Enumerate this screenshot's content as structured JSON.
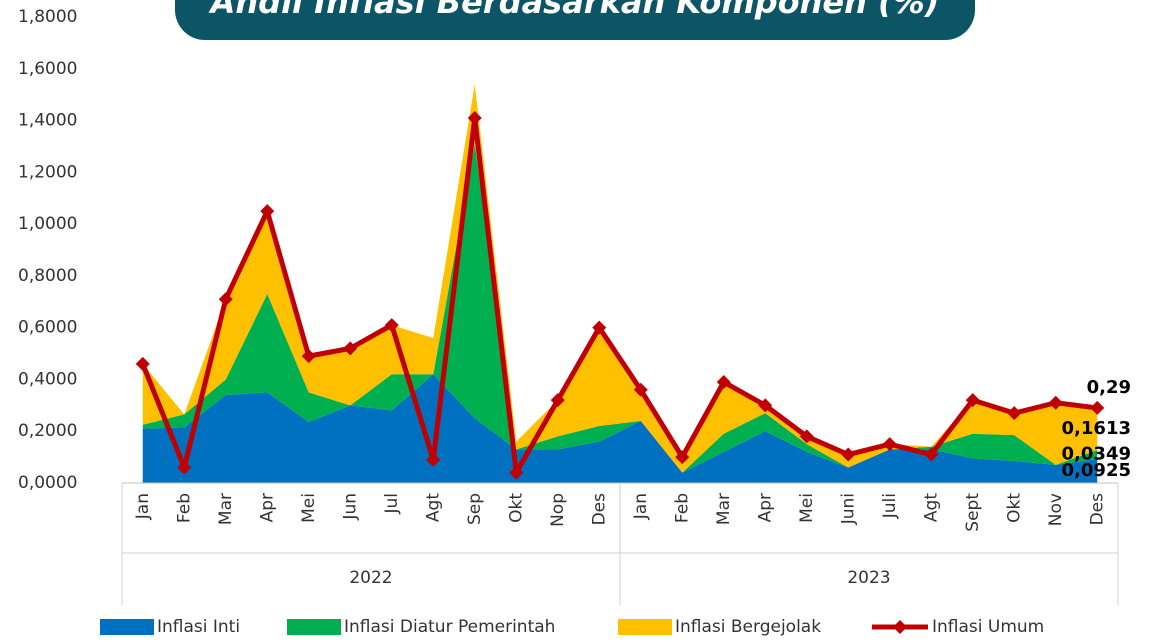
{
  "chart_data": {
    "type": "area",
    "title": "Andil Inflasi Berdasarkan Komponen (%)",
    "groups": [
      {
        "name": "2022",
        "categories": [
          "Jan",
          "Feb",
          "Mar",
          "Apr",
          "Mei",
          "Jun",
          "Jul",
          "Agt",
          "Sep",
          "Okt",
          "Nop",
          "Des"
        ]
      },
      {
        "name": "2023",
        "categories": [
          "Jan",
          "Feb",
          "Mar",
          "Apr",
          "Mei",
          "Juni",
          "Juli",
          "Agt",
          "Sept",
          "Okt",
          "Nov",
          "Des"
        ]
      }
    ],
    "ylim": [
      0,
      1.8
    ],
    "yticks": [
      {
        "value": 0,
        "label": "0,0000"
      },
      {
        "value": 0.2,
        "label": "0,2000"
      },
      {
        "value": 0.4,
        "label": "0,4000"
      },
      {
        "value": 0.6,
        "label": "0,6000"
      },
      {
        "value": 0.8,
        "label": "0,8000"
      },
      {
        "value": 1.0,
        "label": "1,0000"
      },
      {
        "value": 1.2,
        "label": "1,2000"
      },
      {
        "value": 1.4,
        "label": "1,4000"
      },
      {
        "value": 1.6,
        "label": "1,6000"
      },
      {
        "value": 1.8,
        "label": "1,8000"
      }
    ],
    "stacked": true,
    "series": [
      {
        "name": "Inflasi Inti",
        "color": "#0070c0",
        "values": [
          0.21,
          0.215,
          0.34,
          0.35,
          0.235,
          0.3,
          0.28,
          0.42,
          0.25,
          0.13,
          0.13,
          0.16,
          0.24,
          0.04,
          0.12,
          0.2,
          0.12,
          0.06,
          0.13,
          0.13,
          0.095,
          0.085,
          0.07,
          0.0925
        ],
        "value_labels": [
          null,
          null,
          null,
          null,
          null,
          null,
          null,
          null,
          null,
          null,
          null,
          null,
          null,
          null,
          null,
          null,
          null,
          null,
          null,
          null,
          null,
          null,
          null,
          "0,0925"
        ]
      },
      {
        "name": "Inflasi Diatur Pemerintah",
        "color": "#00b050",
        "values": [
          0.015,
          0.05,
          0.06,
          0.38,
          0.115,
          0.0,
          0.14,
          0.0,
          1.06,
          0.0,
          0.05,
          0.06,
          0.0,
          0.0,
          0.07,
          0.07,
          0.03,
          0.0,
          0.0,
          0.01,
          0.095,
          0.1,
          0.0,
          0.0349
        ],
        "value_labels": [
          null,
          null,
          null,
          null,
          null,
          null,
          null,
          null,
          null,
          null,
          null,
          null,
          null,
          null,
          null,
          null,
          null,
          null,
          null,
          null,
          null,
          null,
          null,
          "0,0349"
        ]
      },
      {
        "name": "Inflasi Bergejolak",
        "color": "#ffc000",
        "values": [
          0.235,
          0.0,
          0.31,
          0.32,
          0.14,
          0.22,
          0.19,
          0.14,
          0.23,
          0.03,
          0.14,
          0.38,
          0.12,
          0.06,
          0.2,
          0.03,
          0.03,
          0.05,
          0.02,
          0.0,
          0.13,
          0.085,
          0.24,
          0.1613
        ],
        "value_labels": [
          null,
          null,
          null,
          null,
          null,
          null,
          null,
          null,
          null,
          null,
          null,
          null,
          null,
          null,
          null,
          null,
          null,
          null,
          null,
          null,
          null,
          null,
          null,
          "0,1613"
        ]
      },
      {
        "name": "Inflasi Umum",
        "color": "#c00000",
        "type": "line",
        "values": [
          0.46,
          0.06,
          0.71,
          1.05,
          0.49,
          0.52,
          0.61,
          0.09,
          1.41,
          0.04,
          0.32,
          0.6,
          0.36,
          0.1,
          0.39,
          0.3,
          0.18,
          0.11,
          0.15,
          0.11,
          0.32,
          0.27,
          0.31,
          0.29
        ],
        "value_labels": [
          null,
          null,
          null,
          null,
          null,
          null,
          null,
          null,
          null,
          null,
          null,
          null,
          null,
          null,
          null,
          null,
          null,
          null,
          null,
          null,
          null,
          null,
          null,
          "0,29"
        ]
      }
    ]
  }
}
